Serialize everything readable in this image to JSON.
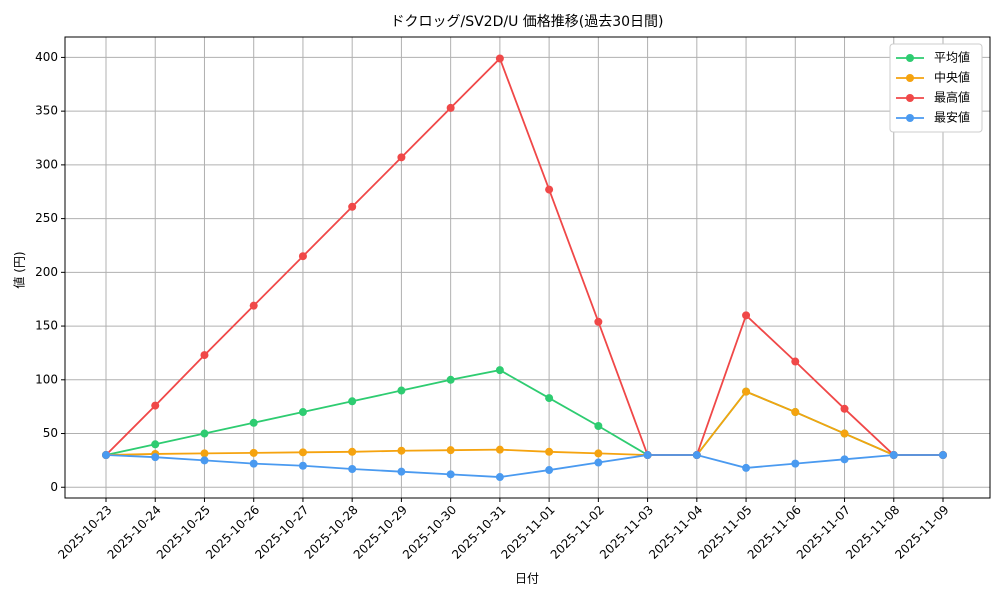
{
  "chart_data": {
    "type": "line",
    "title": "ドクロッグ/SV2D/U 価格推移(過去30日間)",
    "x_label": "日付",
    "y_label": "値 (円)",
    "categories": [
      "2025-10-23",
      "2025-10-24",
      "2025-10-25",
      "2025-10-26",
      "2025-10-27",
      "2025-10-28",
      "2025-10-29",
      "2025-10-30",
      "2025-10-31",
      "2025-11-01",
      "2025-11-02",
      "2025-11-03",
      "2025-11-04",
      "2025-11-05",
      "2025-11-06",
      "2025-11-07",
      "2025-11-08",
      "2025-11-09"
    ],
    "series": [
      {
        "name": "平均値",
        "color": "#2ecc71",
        "values": [
          30,
          40,
          50,
          60,
          70,
          80,
          90,
          100,
          109,
          83,
          57,
          30,
          30,
          89,
          70,
          50,
          30,
          30
        ]
      },
      {
        "name": "中央値",
        "color": "#f5a30f",
        "values": [
          30,
          31,
          31.5,
          32,
          32.5,
          33,
          34,
          34.5,
          35,
          33,
          31.5,
          30,
          30,
          89,
          70,
          50,
          30,
          30
        ]
      },
      {
        "name": "最高値",
        "color": "#f04848",
        "values": [
          30,
          76,
          123,
          169,
          215,
          261,
          307,
          353,
          399,
          277,
          154,
          30,
          30,
          160,
          117,
          73,
          30,
          30
        ]
      },
      {
        "name": "最安値",
        "color": "#4a9af0",
        "values": [
          30,
          28,
          25,
          22,
          20,
          17,
          14.5,
          12,
          9.5,
          16,
          23,
          30,
          30,
          18,
          22,
          26,
          30,
          30
        ]
      }
    ],
    "ylim": [
      -10,
      419
    ],
    "yticks": [
      0,
      50,
      100,
      150,
      200,
      250,
      300,
      350,
      400
    ],
    "grid": true,
    "legend": "upper-right"
  }
}
